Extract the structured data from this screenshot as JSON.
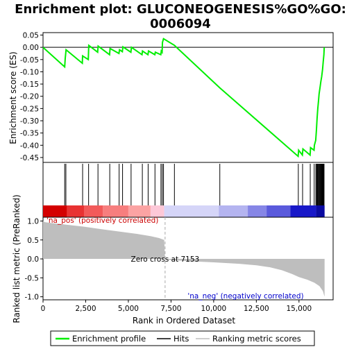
{
  "chart_data": {
    "type": "line",
    "title": "Enrichment plot: GLUCONEOGENESIS%GO%GO:\n0006094",
    "title_lines": [
      "Enrichment plot: GLUCONEOGENESIS%GO%GO:",
      "0006094"
    ],
    "es_panel": {
      "ylabel": "Enrichment score (ES)",
      "ylim": [
        -0.47,
        0.06
      ],
      "yticks": [
        0.05,
        0.0,
        -0.05,
        -0.1,
        -0.15,
        -0.2,
        -0.25,
        -0.3,
        -0.35,
        -0.4,
        -0.45
      ],
      "ytick_labels": [
        "0.05",
        "0.00",
        "-0.05",
        "-0.10",
        "-0.15",
        "-0.20",
        "-0.25",
        "-0.30",
        "-0.35",
        "-0.40",
        "-0.45"
      ],
      "series_color": "#00ee00",
      "es_profile": [
        [
          0,
          0.0
        ],
        [
          1270,
          -0.08
        ],
        [
          1300,
          -0.045
        ],
        [
          1350,
          -0.01
        ],
        [
          2300,
          -0.065
        ],
        [
          2320,
          -0.035
        ],
        [
          2650,
          -0.05
        ],
        [
          2680,
          0.008
        ],
        [
          3200,
          -0.02
        ],
        [
          3230,
          0.005
        ],
        [
          3900,
          -0.03
        ],
        [
          3930,
          -0.005
        ],
        [
          4450,
          -0.025
        ],
        [
          4480,
          -0.01
        ],
        [
          4650,
          -0.018
        ],
        [
          4680,
          0.002
        ],
        [
          5150,
          -0.02
        ],
        [
          5180,
          0.0
        ],
        [
          5800,
          -0.03
        ],
        [
          5830,
          -0.015
        ],
        [
          6150,
          -0.03
        ],
        [
          6180,
          -0.015
        ],
        [
          6550,
          -0.03
        ],
        [
          6580,
          -0.02
        ],
        [
          6900,
          -0.03
        ],
        [
          6930,
          -0.015
        ],
        [
          6980,
          -0.02
        ],
        [
          7000,
          0.02
        ],
        [
          7060,
          0.035
        ],
        [
          7700,
          0.008
        ],
        [
          10350,
          -0.165
        ],
        [
          14950,
          -0.445
        ],
        [
          14980,
          -0.42
        ],
        [
          15200,
          -0.44
        ],
        [
          15230,
          -0.415
        ],
        [
          15650,
          -0.44
        ],
        [
          15680,
          -0.41
        ],
        [
          15880,
          -0.42
        ],
        [
          15900,
          -0.4
        ],
        [
          15980,
          -0.38
        ],
        [
          16020,
          -0.34
        ],
        [
          16060,
          -0.29
        ],
        [
          16100,
          -0.25
        ],
        [
          16140,
          -0.22
        ],
        [
          16180,
          -0.19
        ],
        [
          16230,
          -0.165
        ],
        [
          16280,
          -0.14
        ],
        [
          16330,
          -0.12
        ],
        [
          16380,
          -0.09
        ],
        [
          16420,
          -0.06
        ],
        [
          16460,
          -0.03
        ],
        [
          16480,
          0.0
        ]
      ]
    },
    "hits": [
      1270,
      1340,
      2320,
      2670,
      3220,
      3910,
      4460,
      4660,
      5160,
      5820,
      6160,
      6560,
      6910,
      6990,
      7060,
      7700,
      10360,
      14960,
      15210,
      15660,
      15890,
      15990,
      16030,
      16070,
      16090,
      16110,
      16150,
      16190,
      16230,
      16270,
      16310,
      16350,
      16390,
      16430,
      16470
    ],
    "color_bar": {
      "segments": [
        {
          "to": 1400,
          "color": "#d40000"
        },
        {
          "to": 2400,
          "color": "#e83232"
        },
        {
          "to": 3500,
          "color": "#f25a5a"
        },
        {
          "to": 5000,
          "color": "#f77e7e"
        },
        {
          "to": 6300,
          "color": "#fba3a3"
        },
        {
          "to": 7100,
          "color": "#fdc8d8"
        },
        {
          "to": 10300,
          "color": "#d5d5f8"
        },
        {
          "to": 12000,
          "color": "#b4b4f0"
        },
        {
          "to": 13100,
          "color": "#8686e6"
        },
        {
          "to": 14500,
          "color": "#5a5adc"
        },
        {
          "to": 16000,
          "color": "#1818c8"
        },
        {
          "to": 16500,
          "color": "#0a0aa0"
        }
      ]
    },
    "metric_panel": {
      "ylabel": "Ranked list metric (PreRanked)",
      "ylim": [
        -1.08,
        1.1
      ],
      "yticks": [
        1.0,
        0.5,
        0.0,
        -0.5,
        -1.0
      ],
      "ytick_labels": [
        "1.0",
        "0.5",
        "0.0",
        "-0.5",
        "-1.0"
      ],
      "fill_color": "#bebebe",
      "metric_profile": [
        [
          0,
          1.0
        ],
        [
          100,
          0.97
        ],
        [
          600,
          0.94
        ],
        [
          1400,
          0.9
        ],
        [
          2400,
          0.85
        ],
        [
          3500,
          0.78
        ],
        [
          4500,
          0.72
        ],
        [
          5500,
          0.66
        ],
        [
          6300,
          0.6
        ],
        [
          6800,
          0.55
        ],
        [
          7100,
          0.5
        ],
        [
          7150,
          0.0
        ],
        [
          7200,
          -0.02
        ],
        [
          8500,
          -0.06
        ],
        [
          10000,
          -0.09
        ],
        [
          11500,
          -0.13
        ],
        [
          12500,
          -0.17
        ],
        [
          13300,
          -0.22
        ],
        [
          14000,
          -0.3
        ],
        [
          14600,
          -0.4
        ],
        [
          15000,
          -0.48
        ],
        [
          15500,
          -0.55
        ],
        [
          15900,
          -0.63
        ],
        [
          16200,
          -0.72
        ],
        [
          16400,
          -0.85
        ],
        [
          16500,
          -1.0
        ]
      ],
      "zero_cross_label": "Zero cross at 7153",
      "zero_cross_rank": 7153,
      "pos_label": "'na_pos' (positively correlated)",
      "neg_label": "'na_neg' (negatively correlated)",
      "pos_color": "#cc0000",
      "neg_color": "#0000cc"
    },
    "xlabel": "Rank in Ordered Dataset",
    "xlim": [
      0,
      17000
    ],
    "xticks": [
      0,
      2500,
      5000,
      7500,
      10000,
      12500,
      15000
    ],
    "xtick_labels": [
      "0",
      "2,500",
      "5,000",
      "7,500",
      "10,000",
      "12,500",
      "15,000"
    ],
    "legend": {
      "placement": "bottom",
      "items": [
        {
          "label": "Enrichment profile",
          "kind": "line",
          "color": "#00ee00"
        },
        {
          "label": "Hits",
          "kind": "line",
          "color": "#000000"
        },
        {
          "label": "Ranking metric scores",
          "kind": "line",
          "color": "#bebebe"
        }
      ]
    }
  }
}
